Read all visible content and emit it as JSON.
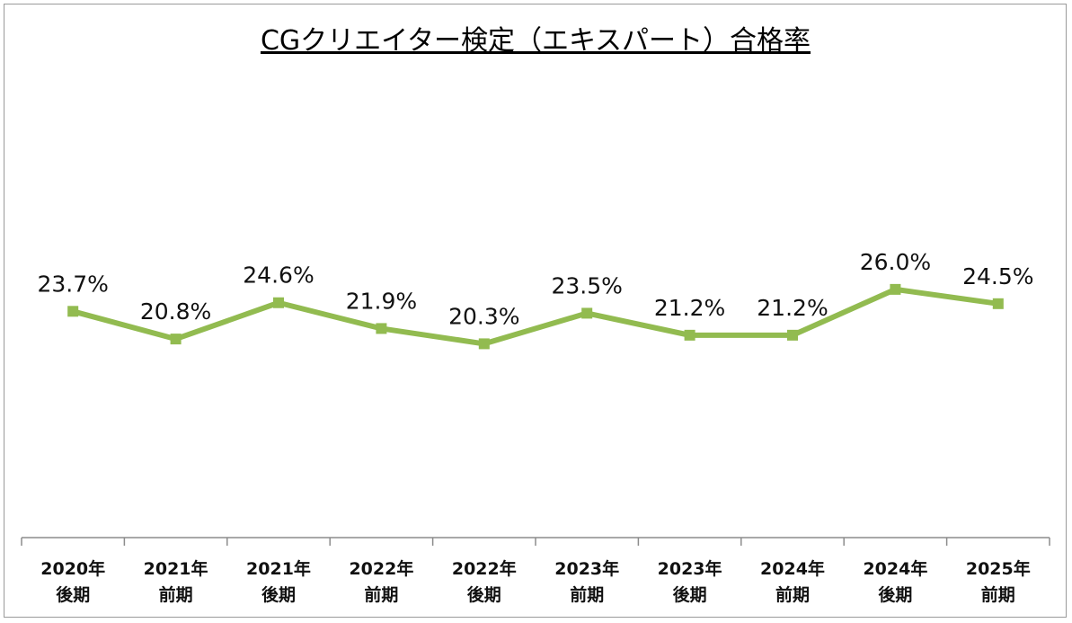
{
  "chart_data": {
    "type": "line",
    "title": "CGクリエイター検定（エキスパート）合格率",
    "categories": [
      [
        "2020年",
        "後期"
      ],
      [
        "2021年",
        "前期"
      ],
      [
        "2021年",
        "後期"
      ],
      [
        "2022年",
        "前期"
      ],
      [
        "2022年",
        "後期"
      ],
      [
        "2023年",
        "前期"
      ],
      [
        "2023年",
        "後期"
      ],
      [
        "2024年",
        "前期"
      ],
      [
        "2024年",
        "後期"
      ],
      [
        "2025年",
        "前期"
      ]
    ],
    "series": [
      {
        "name": "合格率",
        "values": [
          23.7,
          20.8,
          24.6,
          21.9,
          20.3,
          23.5,
          21.2,
          21.2,
          26.0,
          24.5
        ],
        "labels": [
          "23.7%",
          "20.8%",
          "24.6%",
          "21.9%",
          "20.3%",
          "23.5%",
          "21.2%",
          "21.2%",
          "26.0%",
          "24.5%"
        ],
        "color": "#92bb50"
      }
    ],
    "xlabel": "",
    "ylabel": "",
    "ylim": [
      0,
      50
    ],
    "grid": false,
    "legend": "none",
    "axis_color": "#8c8c8c"
  }
}
